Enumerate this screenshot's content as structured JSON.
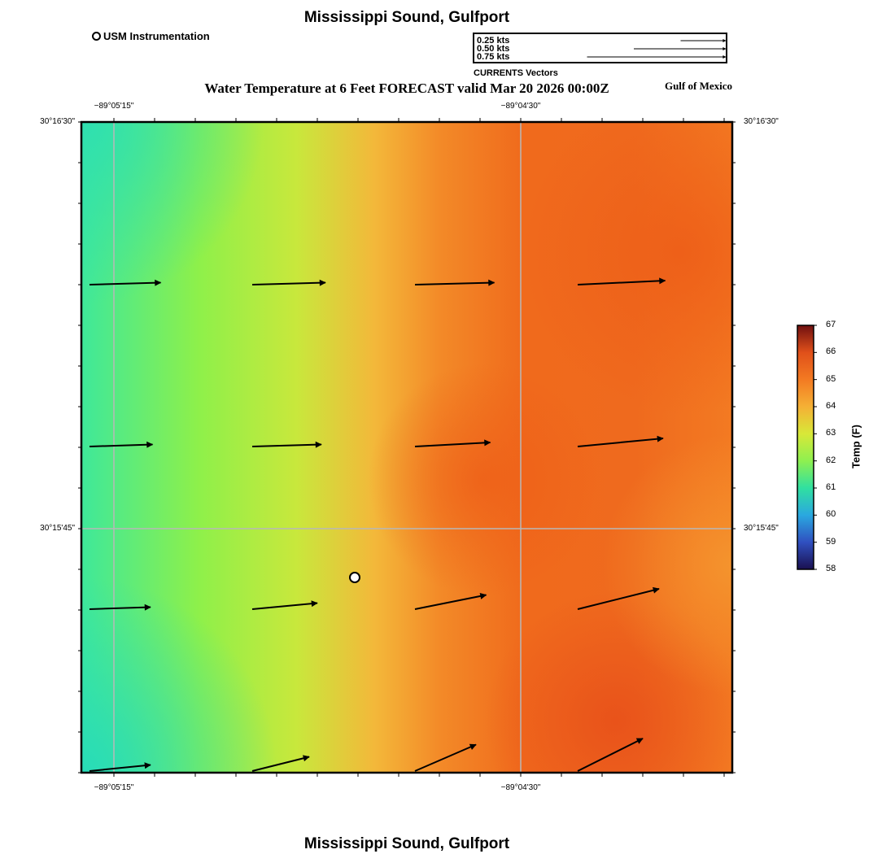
{
  "header": {
    "title": "Mississippi Sound, Gulfport",
    "footer_title": "Mississippi Sound, Gulfport",
    "map_title": "Water Temperature at 6 Feet FORECAST valid Mar 20 2026 00:00Z",
    "region_label": "Gulf of Mexico"
  },
  "legend": {
    "station_label": "USM Instrumentation",
    "vector_scale": [
      {
        "label": "0.25 kts",
        "speed": 0.25
      },
      {
        "label": "0.50 kts",
        "speed": 0.5
      },
      {
        "label": "0.75 kts",
        "speed": 0.75
      }
    ],
    "vector_caption": "CURRENTS Vectors"
  },
  "axes": {
    "lat_labels": [
      "30°16'30\"",
      "30°15'45\""
    ],
    "lon_labels": [
      "−89°05'15\"",
      "−89°04'30\""
    ]
  },
  "colorbar": {
    "title": "Temp (F)",
    "min": 58,
    "max": 67,
    "ticks": [
      "67",
      "66",
      "65",
      "64",
      "63",
      "62",
      "61",
      "60",
      "59",
      "58"
    ],
    "colors": [
      "#1a1050",
      "#3050c0",
      "#2aa8e0",
      "#30e0a0",
      "#8ef050",
      "#d8e838",
      "#f5b035",
      "#f37a22",
      "#e0501a",
      "#701010"
    ]
  },
  "map": {
    "station_marker": {
      "name": "USM Instrumentation",
      "lat_frac": 0.3,
      "lon_frac": 0.42
    },
    "temperature_fill_colors": {
      "cool": "#2ee3a8",
      "mid": "#c8e83c",
      "warm": "#f37220",
      "hot": "#ee5e1a"
    },
    "current_vectors": [
      {
        "row": 1,
        "col": 1,
        "u": 0.35,
        "v": 0.01
      },
      {
        "row": 1,
        "col": 2,
        "u": 0.36,
        "v": 0.01
      },
      {
        "row": 1,
        "col": 3,
        "u": 0.39,
        "v": 0.01
      },
      {
        "row": 1,
        "col": 4,
        "u": 0.43,
        "v": 0.02
      },
      {
        "row": 2,
        "col": 1,
        "u": 0.31,
        "v": 0.01
      },
      {
        "row": 2,
        "col": 2,
        "u": 0.34,
        "v": 0.01
      },
      {
        "row": 2,
        "col": 3,
        "u": 0.37,
        "v": 0.02
      },
      {
        "row": 2,
        "col": 4,
        "u": 0.42,
        "v": 0.04
      },
      {
        "row": 3,
        "col": 1,
        "u": 0.3,
        "v": 0.01
      },
      {
        "row": 3,
        "col": 2,
        "u": 0.32,
        "v": 0.03
      },
      {
        "row": 3,
        "col": 3,
        "u": 0.35,
        "v": 0.07
      },
      {
        "row": 3,
        "col": 4,
        "u": 0.4,
        "v": 0.1
      },
      {
        "row": 4,
        "col": 1,
        "u": 0.3,
        "v": 0.03
      },
      {
        "row": 4,
        "col": 2,
        "u": 0.28,
        "v": 0.07
      },
      {
        "row": 4,
        "col": 3,
        "u": 0.3,
        "v": 0.13
      },
      {
        "row": 4,
        "col": 4,
        "u": 0.32,
        "v": 0.16
      }
    ]
  }
}
